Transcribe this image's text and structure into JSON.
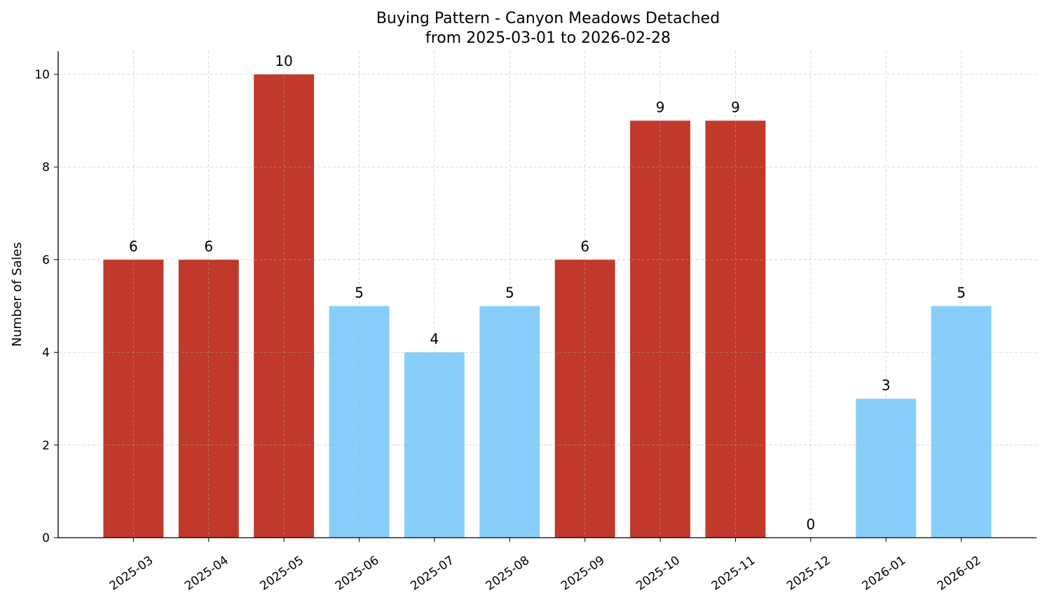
{
  "chart_data": {
    "type": "bar",
    "title": "Buying Pattern - Canyon Meadows Detached",
    "subtitle": "from 2025-03-01 to 2026-02-28",
    "xlabel": "",
    "ylabel": "Number of Sales",
    "categories": [
      "2025-03",
      "2025-04",
      "2025-05",
      "2025-06",
      "2025-07",
      "2025-08",
      "2025-09",
      "2025-10",
      "2025-11",
      "2025-12",
      "2026-01",
      "2026-02"
    ],
    "values": [
      6,
      6,
      10,
      5,
      4,
      5,
      6,
      9,
      9,
      0,
      3,
      5
    ],
    "ylim": [
      0,
      10.5
    ],
    "yticks": [
      0,
      2,
      4,
      6,
      8,
      10
    ],
    "grid": true,
    "data_labels": true,
    "colors": {
      "high": "#c0392b",
      "low": "#87cefa",
      "high_threshold": 6
    }
  }
}
